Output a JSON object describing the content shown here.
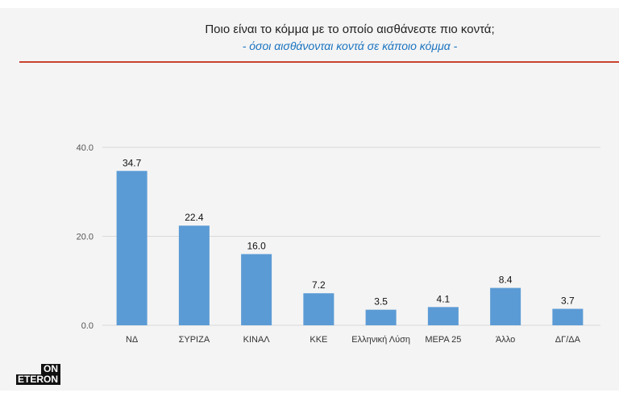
{
  "chart_data": {
    "type": "bar",
    "title": "Ποιο είναι το κόμμα με το οποίο αισθάνεστε πιο κοντά;",
    "subtitle": "- όσοι αισθάνονται κοντά σε κάποιο κόμμα -",
    "categories": [
      "ΝΔ",
      "ΣΥΡΙΖΑ",
      "ΚΙΝΑΛ",
      "ΚΚΕ",
      "Ελληνική Λύση",
      "ΜΕΡΑ 25",
      "Άλλο",
      "ΔΓ/ΔΑ"
    ],
    "values": [
      34.7,
      22.4,
      16.0,
      7.2,
      3.5,
      4.1,
      8.4,
      3.7
    ],
    "data_labels": [
      "34.7",
      "22.4",
      "16.0",
      "7.2",
      "3.5",
      "4.1",
      "8.4",
      "3.7"
    ],
    "yticks": [
      "0.0",
      "20.0",
      "40.0"
    ],
    "ylim": [
      0,
      40
    ],
    "grid": true,
    "bar_color": "#5b9bd5",
    "accent_line_color": "#c8432e"
  },
  "logo": {
    "line1": "ON",
    "line2": "ETERON"
  }
}
